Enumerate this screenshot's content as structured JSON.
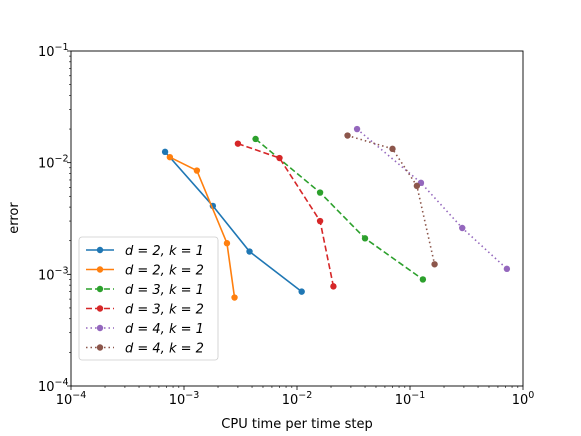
{
  "chart_data": {
    "type": "line",
    "xscale": "log",
    "yscale": "log",
    "xlim": [
      0.0001,
      1
    ],
    "ylim": [
      0.0001,
      0.1
    ],
    "xlabel": "CPU time per time step",
    "ylabel": "error",
    "title": "",
    "grid": false,
    "legend_position": "lower-left",
    "x_ticks": [
      {
        "value": 0.0001,
        "base": "10",
        "exp": "−4"
      },
      {
        "value": 0.001,
        "base": "10",
        "exp": "−3"
      },
      {
        "value": 0.01,
        "base": "10",
        "exp": "−2"
      },
      {
        "value": 0.1,
        "base": "10",
        "exp": "−1"
      },
      {
        "value": 1,
        "base": "10",
        "exp": "0"
      }
    ],
    "y_ticks": [
      {
        "value": 0.0001,
        "base": "10",
        "exp": "−4"
      },
      {
        "value": 0.001,
        "base": "10",
        "exp": "−3"
      },
      {
        "value": 0.01,
        "base": "10",
        "exp": "−2"
      },
      {
        "value": 0.1,
        "base": "10",
        "exp": "−1"
      }
    ],
    "series": [
      {
        "name": "d = 2, k = 1",
        "color": "#1f77b4",
        "dash": "solid",
        "points": [
          [
            0.00068,
            0.0125
          ],
          [
            0.0018,
            0.0041
          ],
          [
            0.0038,
            0.0016
          ],
          [
            0.011,
            0.0007
          ]
        ]
      },
      {
        "name": "d = 2, k = 2",
        "color": "#ff7f0e",
        "dash": "solid",
        "points": [
          [
            0.00075,
            0.0112
          ],
          [
            0.0013,
            0.0085
          ],
          [
            0.0024,
            0.0019
          ],
          [
            0.0028,
            0.00062
          ]
        ]
      },
      {
        "name": "d = 3, k = 1",
        "color": "#2ca02c",
        "dash": "dashed",
        "points": [
          [
            0.0043,
            0.0163
          ],
          [
            0.016,
            0.0054
          ],
          [
            0.04,
            0.0021
          ],
          [
            0.13,
            0.0009
          ]
        ]
      },
      {
        "name": "d = 3, k = 2",
        "color": "#d62728",
        "dash": "dashed",
        "points": [
          [
            0.003,
            0.0148
          ],
          [
            0.007,
            0.011
          ],
          [
            0.016,
            0.003
          ],
          [
            0.021,
            0.00078
          ]
        ]
      },
      {
        "name": "d = 4, k = 1",
        "color": "#9467bd",
        "dash": "dotted",
        "points": [
          [
            0.034,
            0.02
          ],
          [
            0.125,
            0.0066
          ],
          [
            0.29,
            0.0026
          ],
          [
            0.72,
            0.00112
          ]
        ]
      },
      {
        "name": "d = 4, k = 2",
        "color": "#8c564b",
        "dash": "dotted",
        "points": [
          [
            0.028,
            0.0175
          ],
          [
            0.07,
            0.0133
          ],
          [
            0.115,
            0.0062
          ],
          [
            0.165,
            0.00123
          ]
        ]
      }
    ]
  }
}
